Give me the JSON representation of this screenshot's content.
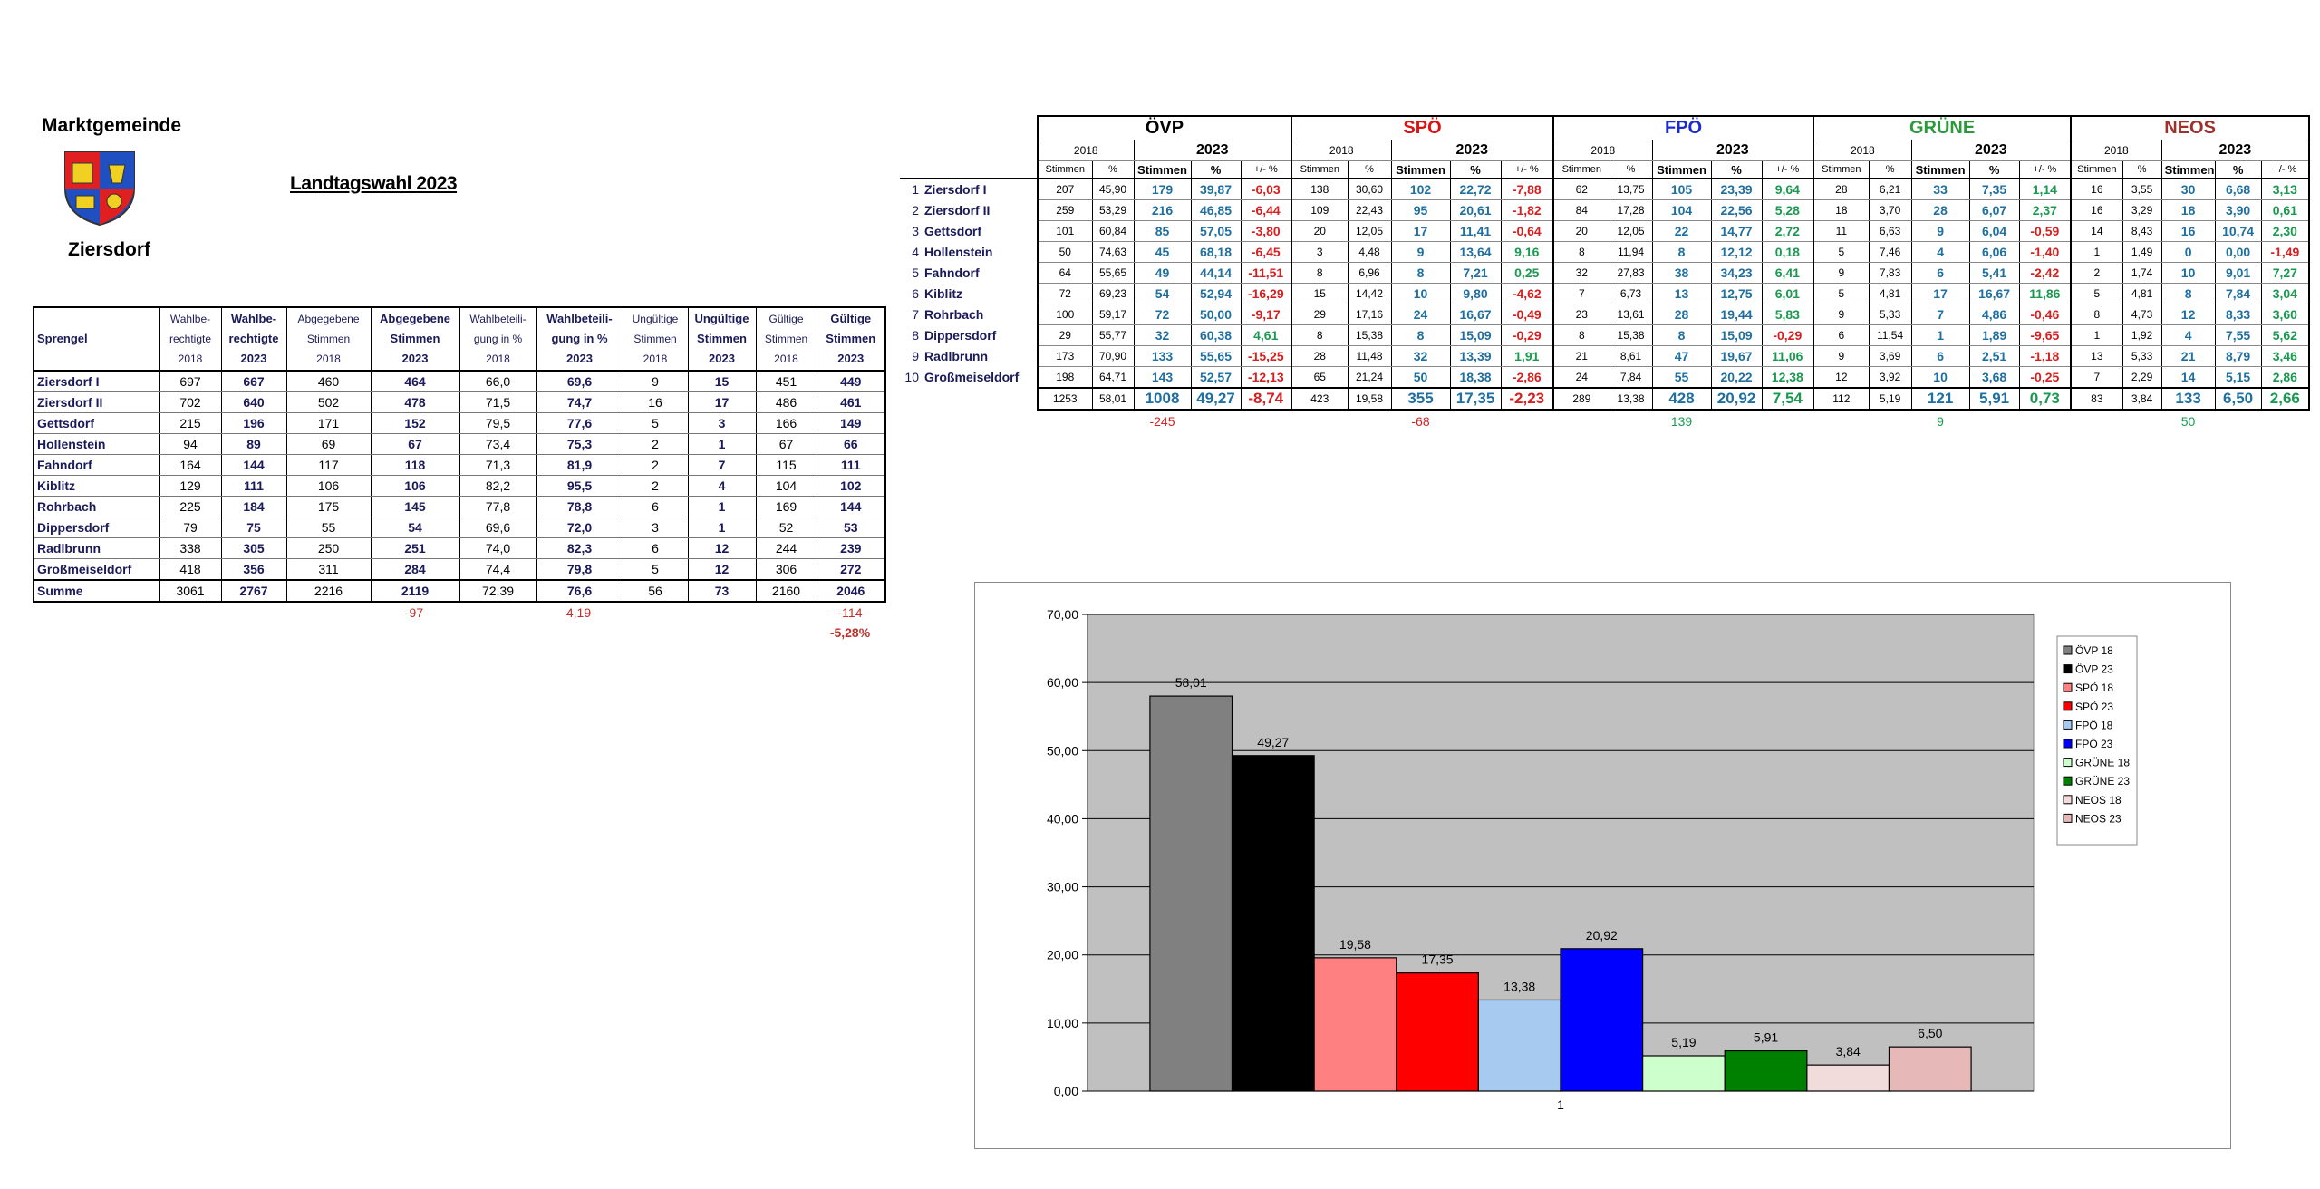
{
  "header": {
    "municipality_label": "Marktgemeinde",
    "municipality": "Ziersdorf",
    "title": "Landtagswahl 2023"
  },
  "turnout_table": {
    "corner": "Sprengel",
    "columns": [
      [
        "Wahlbe-",
        "rechtigte",
        "2018"
      ],
      [
        "Wahlbe-",
        "rechtigte",
        "2023"
      ],
      [
        "Abgegebene",
        "Stimmen",
        "2018"
      ],
      [
        "Abgegebene",
        "Stimmen",
        "2023"
      ],
      [
        "Wahlbeteili-",
        "gung in %",
        "2018"
      ],
      [
        "Wahlbeteili-",
        "gung in %",
        "2023"
      ],
      [
        "Ungültige",
        "Stimmen",
        "2018"
      ],
      [
        "Ungültige",
        "Stimmen",
        "2023"
      ],
      [
        "Gültige",
        "Stimmen",
        "2018"
      ],
      [
        "Gültige",
        "Stimmen",
        "2023"
      ]
    ],
    "rows": [
      [
        "Ziersdorf I",
        "697",
        "667",
        "460",
        "464",
        "66,0",
        "69,6",
        "9",
        "15",
        "451",
        "449"
      ],
      [
        "Ziersdorf II",
        "702",
        "640",
        "502",
        "478",
        "71,5",
        "74,7",
        "16",
        "17",
        "486",
        "461"
      ],
      [
        "Gettsdorf",
        "215",
        "196",
        "171",
        "152",
        "79,5",
        "77,6",
        "5",
        "3",
        "166",
        "149"
      ],
      [
        "Hollenstein",
        "94",
        "89",
        "69",
        "67",
        "73,4",
        "75,3",
        "2",
        "1",
        "67",
        "66"
      ],
      [
        "Fahndorf",
        "164",
        "144",
        "117",
        "118",
        "71,3",
        "81,9",
        "2",
        "7",
        "115",
        "111"
      ],
      [
        "Kiblitz",
        "129",
        "111",
        "106",
        "106",
        "82,2",
        "95,5",
        "2",
        "4",
        "104",
        "102"
      ],
      [
        "Rohrbach",
        "225",
        "184",
        "175",
        "145",
        "77,8",
        "78,8",
        "6",
        "1",
        "169",
        "144"
      ],
      [
        "Dippersdorf",
        "79",
        "75",
        "55",
        "54",
        "69,6",
        "72,0",
        "3",
        "1",
        "52",
        "53"
      ],
      [
        "Radlbrunn",
        "338",
        "305",
        "250",
        "251",
        "74,0",
        "82,3",
        "6",
        "12",
        "244",
        "239"
      ],
      [
        "Großmeiseldorf",
        "418",
        "356",
        "311",
        "284",
        "74,4",
        "79,8",
        "5",
        "12",
        "306",
        "272"
      ]
    ],
    "total": [
      "Summe",
      "3061",
      "2767",
      "2216",
      "2119",
      "72,39",
      "76,6",
      "56",
      "73",
      "2160",
      "2046"
    ],
    "differences": [
      null,
      null,
      null,
      null,
      "-97",
      null,
      "4,19",
      null,
      null,
      null,
      "-114"
    ],
    "differences_percent": [
      null,
      null,
      null,
      null,
      null,
      null,
      null,
      null,
      null,
      null,
      "-5,28%"
    ]
  },
  "results_table": {
    "years": [
      "2018",
      "2023"
    ],
    "subheaders": [
      "Stimmen",
      "%",
      "Stimmen",
      "%",
      "+/- %"
    ],
    "negative_color": "#d42020",
    "positive_color": "#1a9a50",
    "parties": [
      {
        "name": "ÖVP",
        "color": "#000000",
        "difference": "-245"
      },
      {
        "name": "SPÖ",
        "color": "#e01010",
        "difference": "-68"
      },
      {
        "name": "FPÖ",
        "color": "#1a2bd0",
        "difference": "139"
      },
      {
        "name": "GRÜNE",
        "color": "#2a9a3a",
        "difference": "9"
      },
      {
        "name": "NEOS",
        "color": "#a0302a",
        "difference": "50"
      }
    ],
    "rows": [
      {
        "number": "1",
        "name": "Ziersdorf I",
        "cells": [
          "207",
          "45,90",
          "179",
          "39,87",
          "-6,03",
          "138",
          "30,60",
          "102",
          "22,72",
          "-7,88",
          "62",
          "13,75",
          "105",
          "23,39",
          "9,64",
          "28",
          "6,21",
          "33",
          "7,35",
          "1,14",
          "16",
          "3,55",
          "30",
          "6,68",
          "3,13"
        ]
      },
      {
        "number": "2",
        "name": "Ziersdorf II",
        "cells": [
          "259",
          "53,29",
          "216",
          "46,85",
          "-6,44",
          "109",
          "22,43",
          "95",
          "20,61",
          "-1,82",
          "84",
          "17,28",
          "104",
          "22,56",
          "5,28",
          "18",
          "3,70",
          "28",
          "6,07",
          "2,37",
          "16",
          "3,29",
          "18",
          "3,90",
          "0,61"
        ]
      },
      {
        "number": "3",
        "name": "Gettsdorf",
        "cells": [
          "101",
          "60,84",
          "85",
          "57,05",
          "-3,80",
          "20",
          "12,05",
          "17",
          "11,41",
          "-0,64",
          "20",
          "12,05",
          "22",
          "14,77",
          "2,72",
          "11",
          "6,63",
          "9",
          "6,04",
          "-0,59",
          "14",
          "8,43",
          "16",
          "10,74",
          "2,30"
        ]
      },
      {
        "number": "4",
        "name": "Hollenstein",
        "cells": [
          "50",
          "74,63",
          "45",
          "68,18",
          "-6,45",
          "3",
          "4,48",
          "9",
          "13,64",
          "9,16",
          "8",
          "11,94",
          "8",
          "12,12",
          "0,18",
          "5",
          "7,46",
          "4",
          "6,06",
          "-1,40",
          "1",
          "1,49",
          "0",
          "0,00",
          "-1,49"
        ]
      },
      {
        "number": "5",
        "name": "Fahndorf",
        "cells": [
          "64",
          "55,65",
          "49",
          "44,14",
          "-11,51",
          "8",
          "6,96",
          "8",
          "7,21",
          "0,25",
          "32",
          "27,83",
          "38",
          "34,23",
          "6,41",
          "9",
          "7,83",
          "6",
          "5,41",
          "-2,42",
          "2",
          "1,74",
          "10",
          "9,01",
          "7,27"
        ]
      },
      {
        "number": "6",
        "name": "Kiblitz",
        "cells": [
          "72",
          "69,23",
          "54",
          "52,94",
          "-16,29",
          "15",
          "14,42",
          "10",
          "9,80",
          "-4,62",
          "7",
          "6,73",
          "13",
          "12,75",
          "6,01",
          "5",
          "4,81",
          "17",
          "16,67",
          "11,86",
          "5",
          "4,81",
          "8",
          "7,84",
          "3,04"
        ]
      },
      {
        "number": "7",
        "name": "Rohrbach",
        "cells": [
          "100",
          "59,17",
          "72",
          "50,00",
          "-9,17",
          "29",
          "17,16",
          "24",
          "16,67",
          "-0,49",
          "23",
          "13,61",
          "28",
          "19,44",
          "5,83",
          "9",
          "5,33",
          "7",
          "4,86",
          "-0,46",
          "8",
          "4,73",
          "12",
          "8,33",
          "3,60"
        ]
      },
      {
        "number": "8",
        "name": "Dippersdorf",
        "cells": [
          "29",
          "55,77",
          "32",
          "60,38",
          "4,61",
          "8",
          "15,38",
          "8",
          "15,09",
          "-0,29",
          "8",
          "15,38",
          "8",
          "15,09",
          "-0,29",
          "6",
          "11,54",
          "1",
          "1,89",
          "-9,65",
          "1",
          "1,92",
          "4",
          "7,55",
          "5,62"
        ]
      },
      {
        "number": "9",
        "name": "Radlbrunn",
        "cells": [
          "173",
          "70,90",
          "133",
          "55,65",
          "-15,25",
          "28",
          "11,48",
          "32",
          "13,39",
          "1,91",
          "21",
          "8,61",
          "47",
          "19,67",
          "11,06",
          "9",
          "3,69",
          "6",
          "2,51",
          "-1,18",
          "13",
          "5,33",
          "21",
          "8,79",
          "3,46"
        ]
      },
      {
        "number": "10",
        "name": "Großmeiseldorf",
        "cells": [
          "198",
          "64,71",
          "143",
          "52,57",
          "-12,13",
          "65",
          "21,24",
          "50",
          "18,38",
          "-2,86",
          "24",
          "7,84",
          "55",
          "20,22",
          "12,38",
          "12",
          "3,92",
          "10",
          "3,68",
          "-0,25",
          "7",
          "2,29",
          "14",
          "5,15",
          "2,86"
        ]
      }
    ],
    "total": [
      "1253",
      "58,01",
      "1008",
      "49,27",
      "-8,74",
      "423",
      "19,58",
      "355",
      "17,35",
      "-2,23",
      "289",
      "13,38",
      "428",
      "20,92",
      "7,54",
      "112",
      "5,19",
      "121",
      "5,91",
      "0,73",
      "83",
      "3,84",
      "133",
      "6,50",
      "2,66"
    ]
  },
  "chart_data": {
    "type": "bar",
    "categories": [
      "1"
    ],
    "series": [
      {
        "name": "ÖVP 18",
        "color": "#808080",
        "values": [
          58.01
        ],
        "value_labels": [
          "58,01"
        ]
      },
      {
        "name": "ÖVP 23",
        "color": "#000000",
        "values": [
          49.27
        ],
        "value_labels": [
          "49,27"
        ]
      },
      {
        "name": "SPÖ 18",
        "color": "#ff8080",
        "values": [
          19.58
        ],
        "value_labels": [
          "19,58"
        ]
      },
      {
        "name": "SPÖ 23",
        "color": "#ff0000",
        "values": [
          17.35
        ],
        "value_labels": [
          "17,35"
        ]
      },
      {
        "name": "FPÖ 18",
        "color": "#a6caf0",
        "values": [
          13.38
        ],
        "value_labels": [
          "13,38"
        ]
      },
      {
        "name": "FPÖ 23",
        "color": "#0000ff",
        "values": [
          20.92
        ],
        "value_labels": [
          "20,92"
        ]
      },
      {
        "name": "GRÜNE 18",
        "color": "#ccffcc",
        "values": [
          5.19
        ],
        "value_labels": [
          "5,19"
        ]
      },
      {
        "name": "GRÜNE 23",
        "color": "#008000",
        "values": [
          5.91
        ],
        "value_labels": [
          "5,91"
        ]
      },
      {
        "name": "NEOS 18",
        "color": "#f2dcdb",
        "values": [
          3.84
        ],
        "value_labels": [
          "3,84"
        ]
      },
      {
        "name": "NEOS 23",
        "color": "#e6b8b7",
        "values": [
          6.5
        ],
        "value_labels": [
          "6,50"
        ]
      }
    ],
    "ylim": [
      0,
      70
    ],
    "yticks": [
      {
        "value": 0,
        "label": "0,00"
      },
      {
        "value": 10,
        "label": "10,00"
      },
      {
        "value": 20,
        "label": "20,00"
      },
      {
        "value": 30,
        "label": "30,00"
      },
      {
        "value": 40,
        "label": "40,00"
      },
      {
        "value": 50,
        "label": "50,00"
      },
      {
        "value": 60,
        "label": "60,00"
      },
      {
        "value": 70,
        "label": "70,00"
      }
    ],
    "grid": true,
    "legend": "right"
  }
}
